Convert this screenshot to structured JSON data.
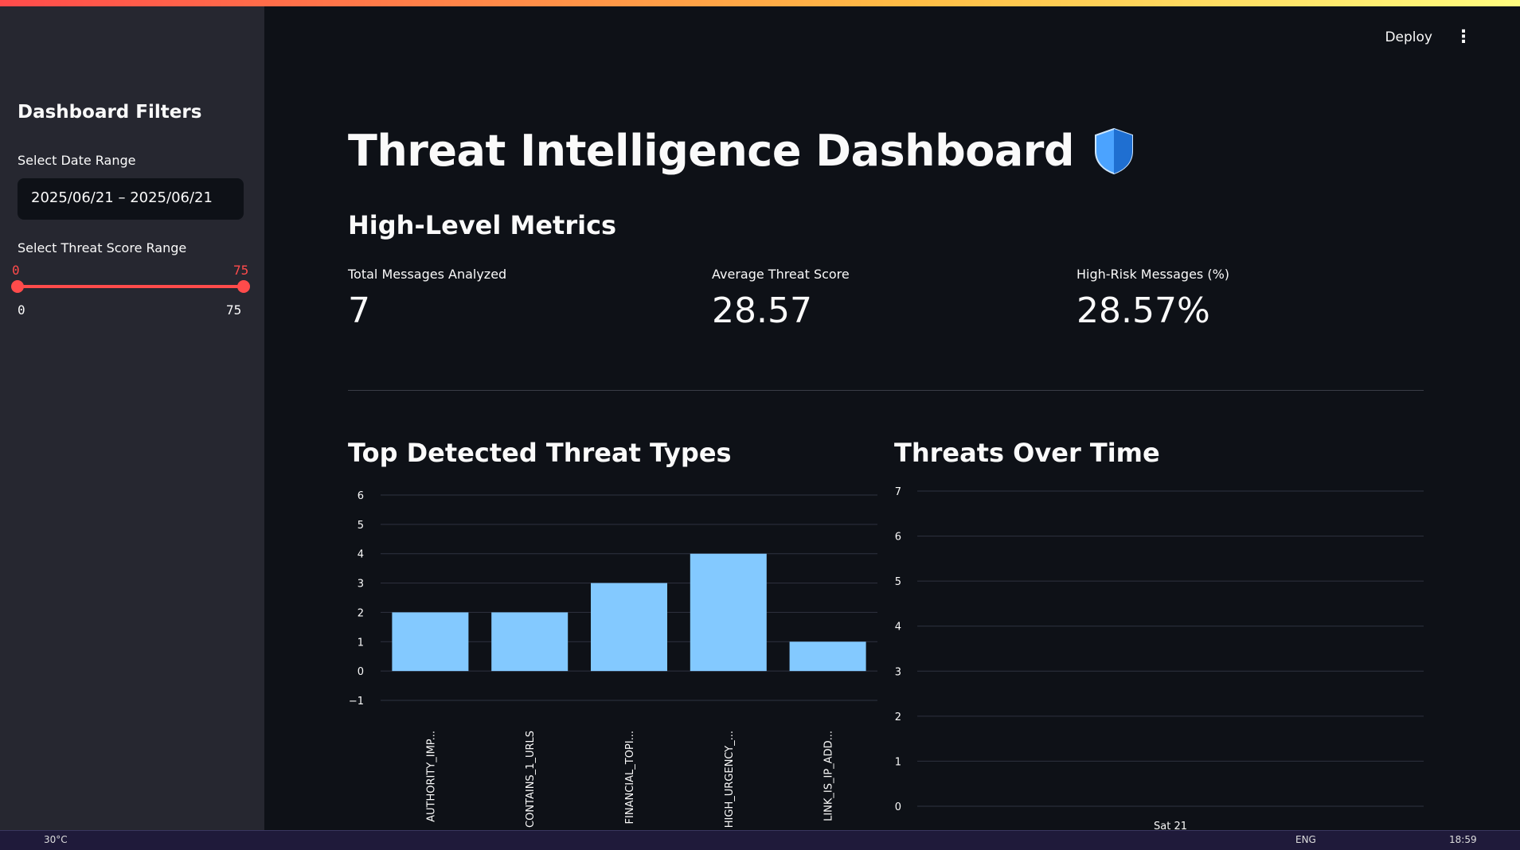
{
  "sidebar": {
    "title": "Dashboard Filters",
    "date_label": "Select Date Range",
    "date_value": "2025/06/21 – 2025/06/21",
    "score_label": "Select Threat Score Range",
    "score_low": "0",
    "score_high": "75",
    "score_min": "0",
    "score_max": "75"
  },
  "header": {
    "deploy_label": "Deploy",
    "menu_icon": "kebab-menu-icon"
  },
  "main": {
    "title": "Threat Intelligence Dashboard",
    "title_icon": "shield-icon",
    "metrics_heading": "High-Level Metrics",
    "metrics": [
      {
        "label": "Total Messages Analyzed",
        "value": "7"
      },
      {
        "label": "Average Threat Score",
        "value": "28.57"
      },
      {
        "label": "High-Risk Messages (%)",
        "value": "28.57%"
      }
    ],
    "chart1_heading": "Top Detected Threat Types",
    "chart2_heading": "Threats Over Time"
  },
  "chart_data": [
    {
      "type": "bar",
      "title": "Top Detected Threat Types",
      "categories": [
        "AUTHORITY_IMP...",
        "CONTAINS_1_URLS",
        "FINANCIAL_TOPI...",
        "HIGH_URGENCY_...",
        "LINK_IS_IP_ADD..."
      ],
      "values": [
        2,
        2,
        3,
        4,
        1
      ],
      "yticks": [
        "6",
        "5",
        "4",
        "3",
        "2",
        "1",
        "0",
        "−1"
      ],
      "ylim": [
        -1,
        6
      ],
      "color": "#83c9ff"
    },
    {
      "type": "line",
      "title": "Threats Over Time",
      "yticks": [
        "7",
        "6",
        "5",
        "4",
        "3",
        "2",
        "1",
        "0"
      ],
      "ylim": [
        0,
        7
      ],
      "xticks": [
        "Sat 21"
      ],
      "series": []
    }
  ],
  "taskbar": {
    "weather": "30°C",
    "lang": "ENG",
    "time": "18:59"
  },
  "colors": {
    "accent": "#ff4b4b",
    "bar": "#83c9ff",
    "background": "#0e1117",
    "sidebar": "#262730"
  }
}
